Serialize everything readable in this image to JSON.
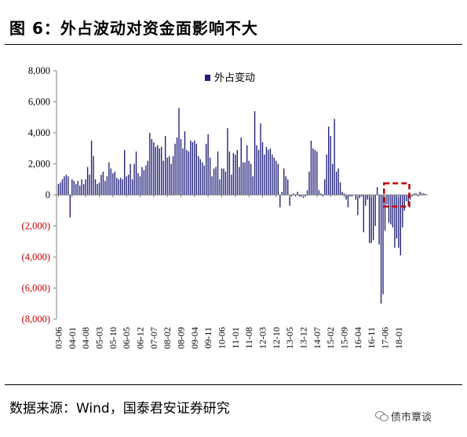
{
  "header": {
    "title": "图  6：外占波动对资金面影响不大"
  },
  "footer": {
    "source": "数据来源：Wind，国泰君安证券研究",
    "watermark": "债市覃谈"
  },
  "icons": {
    "watermark_icon": "wechat-icon"
  },
  "colors": {
    "bar": "#1f1f7a",
    "negative_label": "#c00000",
    "highlight_box": "#c00000",
    "axis": "#808080"
  },
  "chart_data": {
    "type": "bar",
    "title": "",
    "xlabel": "",
    "ylabel": "",
    "ylim": [
      -8000,
      8000
    ],
    "y_ticks": [
      8000,
      6000,
      4000,
      2000,
      0,
      -2000,
      -4000,
      -6000,
      -8000
    ],
    "y_tick_labels": [
      "8,000",
      "6,000",
      "4,000",
      "2,000",
      "0",
      "(2,000)",
      "(4,000)",
      "(6,000)",
      "(8,000)"
    ],
    "x_tick_labels": [
      "03-06",
      "04-01",
      "04-08",
      "05-03",
      "05-10",
      "06-05",
      "06-12",
      "07-07",
      "08-02",
      "08-09",
      "09-04",
      "09-11",
      "10-06",
      "11-01",
      "11-08",
      "12-03",
      "12-10",
      "13-05",
      "13-12",
      "14-07",
      "15-02",
      "15-09",
      "16-04",
      "16-11",
      "17-06",
      "18-01"
    ],
    "legend": {
      "position": "top",
      "entries": [
        "外占变动"
      ]
    },
    "annotation": {
      "type": "dashed-box",
      "x_range": [
        "17-06",
        "18-01"
      ]
    },
    "series": [
      {
        "name": "外占变动",
        "start": "2003-06",
        "frequency": "month",
        "values": [
          700,
          800,
          1000,
          1200,
          1300,
          1200,
          -1450,
          1000,
          900,
          700,
          900,
          600,
          1000,
          700,
          1000,
          1800,
          1300,
          3500,
          2500,
          1000,
          700,
          800,
          1300,
          1500,
          900,
          1200,
          2100,
          1700,
          1400,
          1500,
          1100,
          1000,
          1100,
          1000,
          2900,
          1200,
          1300,
          2000,
          1000,
          2000,
          2800,
          1400,
          1200,
          1800,
          1600,
          1900,
          2200,
          4000,
          3600,
          3400,
          3100,
          3200,
          3000,
          3100,
          2200,
          3800,
          2400,
          2500,
          2000,
          2500,
          3300,
          3700,
          5600,
          3600,
          3000,
          4100,
          2900,
          2800,
          3500,
          3400,
          3500,
          3300,
          2500,
          2300,
          2100,
          1900,
          3300,
          3900,
          2400,
          1200,
          1700,
          1800,
          2800,
          1000,
          1700,
          1700,
          1500,
          4300,
          2800,
          1300,
          2700,
          2600,
          2900,
          1800,
          3700,
          2100,
          2100,
          3200,
          2200,
          2000,
          1200,
          5400,
          3200,
          2900,
          4600,
          3400,
          2600,
          3100,
          2900,
          3000,
          2600,
          2400,
          2200,
          2000,
          -800,
          200,
          1700,
          1200,
          1000,
          -700,
          -100,
          100,
          -100,
          200,
          -100,
          -100,
          -200,
          -100,
          300,
          1500,
          3500,
          3000,
          2900,
          2800,
          300,
          100,
          -100,
          1000,
          2600,
          4400,
          3800,
          2000,
          4900,
          1500,
          1700,
          800,
          200,
          100,
          -300,
          -800,
          -100,
          -100,
          0,
          -300,
          -1300,
          -200,
          -100,
          -2400,
          -700,
          -300,
          -3100,
          -3100,
          -2900,
          -2000,
          500,
          -3200,
          -7000,
          -6400,
          -2300,
          -600,
          -1800,
          -1900,
          -2100,
          -3400,
          -2800,
          -3400,
          -3900,
          -2100,
          -1000,
          -400,
          -700,
          -300,
          -100,
          100,
          100,
          -100,
          200,
          100,
          100,
          50
        ]
      }
    ]
  }
}
